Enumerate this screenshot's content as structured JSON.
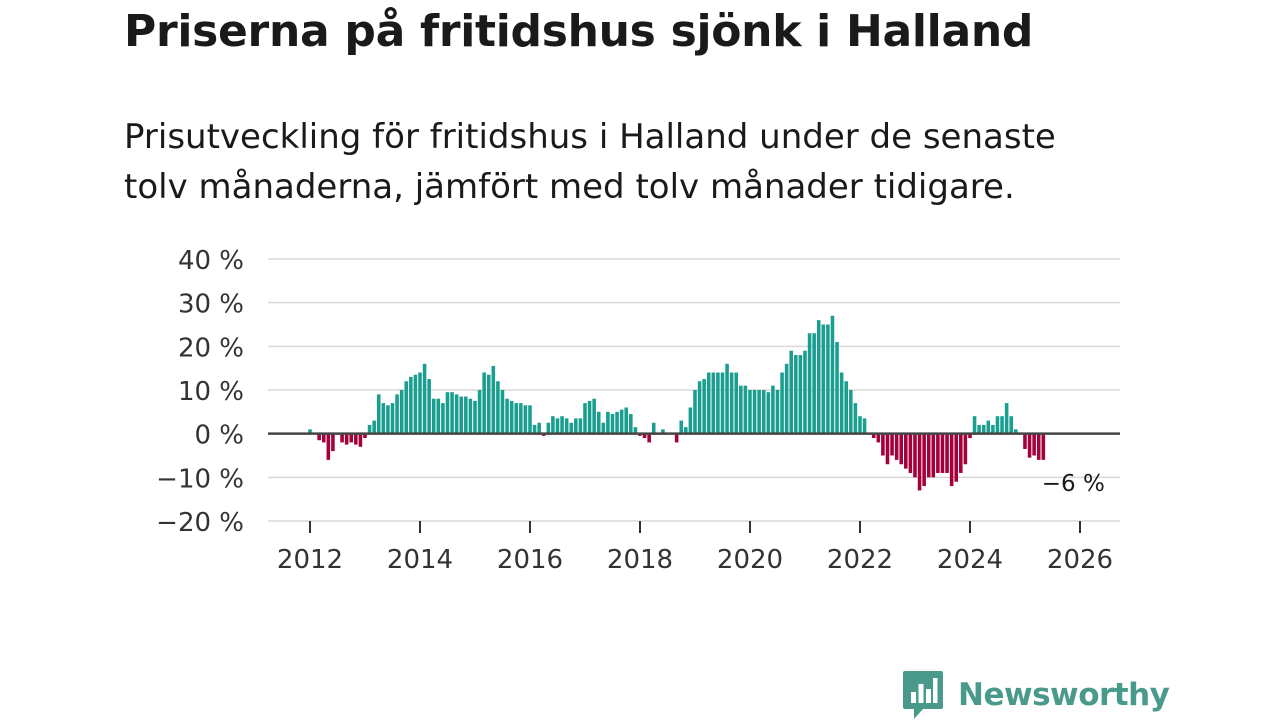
{
  "header": {
    "title": "Priserna på fritidshus sjönk i Halland",
    "subtitle": "Prisutveckling för fritidshus i Halland under de senaste tolv månaderna, jämfört med tolv månader tidigare."
  },
  "brand": {
    "name": "Newsworthy",
    "icon": "newsworthy-logo-icon",
    "color": "#4a9a8c"
  },
  "chart_data": {
    "type": "bar",
    "title": "Priserna på fritidshus sjönk i Halland",
    "xlabel": "",
    "ylabel": "",
    "ylim": [
      -20,
      40
    ],
    "yticks": [
      -20,
      -10,
      0,
      10,
      20,
      30,
      40
    ],
    "ytick_labels": [
      "−20 %",
      "−10 %",
      "0 %",
      "10 %",
      "20 %",
      "30 %",
      "40 %"
    ],
    "xticks": [
      2012,
      2014,
      2016,
      2018,
      2020,
      2022,
      2024,
      2026
    ],
    "xtick_labels": [
      "2012",
      "2014",
      "2016",
      "2018",
      "2020",
      "2022",
      "2024",
      "2026"
    ],
    "x_start": 2012.0,
    "x_step_years": 0.08333,
    "positive_color": "#1a9e8f",
    "negative_color": "#a3003c",
    "grid": true,
    "annotation": {
      "text": "−6 %",
      "target": "last"
    },
    "series": [
      {
        "name": "Prisutveckling",
        "values": [
          1,
          0,
          -1.5,
          -2,
          -6,
          -4,
          0,
          -2,
          -2.5,
          -2,
          -2.5,
          -3,
          -1,
          2,
          3,
          9,
          7,
          6.5,
          7,
          9,
          10,
          12,
          13,
          13.5,
          14,
          16,
          12.5,
          8,
          8,
          7,
          9.5,
          9.5,
          9,
          8.5,
          8.5,
          8,
          7.5,
          10,
          14,
          13.5,
          15.5,
          12,
          10,
          8,
          7.5,
          7,
          7,
          6.5,
          6.5,
          2,
          2.5,
          -0.5,
          2.5,
          4,
          3.5,
          4,
          3.5,
          2.5,
          3.5,
          3.5,
          7,
          7.5,
          8,
          5,
          2.5,
          5,
          4.5,
          5,
          5.5,
          6,
          4.5,
          1.5,
          -0.5,
          -1,
          -2,
          2.5,
          0,
          1,
          0,
          0,
          -2,
          3,
          1.5,
          6,
          10,
          12,
          12.5,
          14,
          14,
          14,
          14,
          16,
          14,
          14,
          11,
          11,
          10,
          10,
          10,
          10,
          9.5,
          11,
          10,
          14,
          16,
          19,
          18,
          18,
          19,
          23,
          23,
          26,
          25,
          25,
          27,
          21,
          14,
          12,
          10,
          7,
          4,
          3.5,
          0,
          -1,
          -2,
          -5,
          -7,
          -5,
          -6,
          -7,
          -8,
          -9,
          -10,
          -13,
          -12,
          -10,
          -10,
          -9,
          -9,
          -9,
          -12,
          -11,
          -9,
          -7,
          -1,
          4,
          2,
          2,
          3,
          2,
          4,
          4,
          7,
          4,
          1,
          0,
          -3.5,
          -5.5,
          -5,
          -6,
          -6
        ]
      }
    ]
  }
}
